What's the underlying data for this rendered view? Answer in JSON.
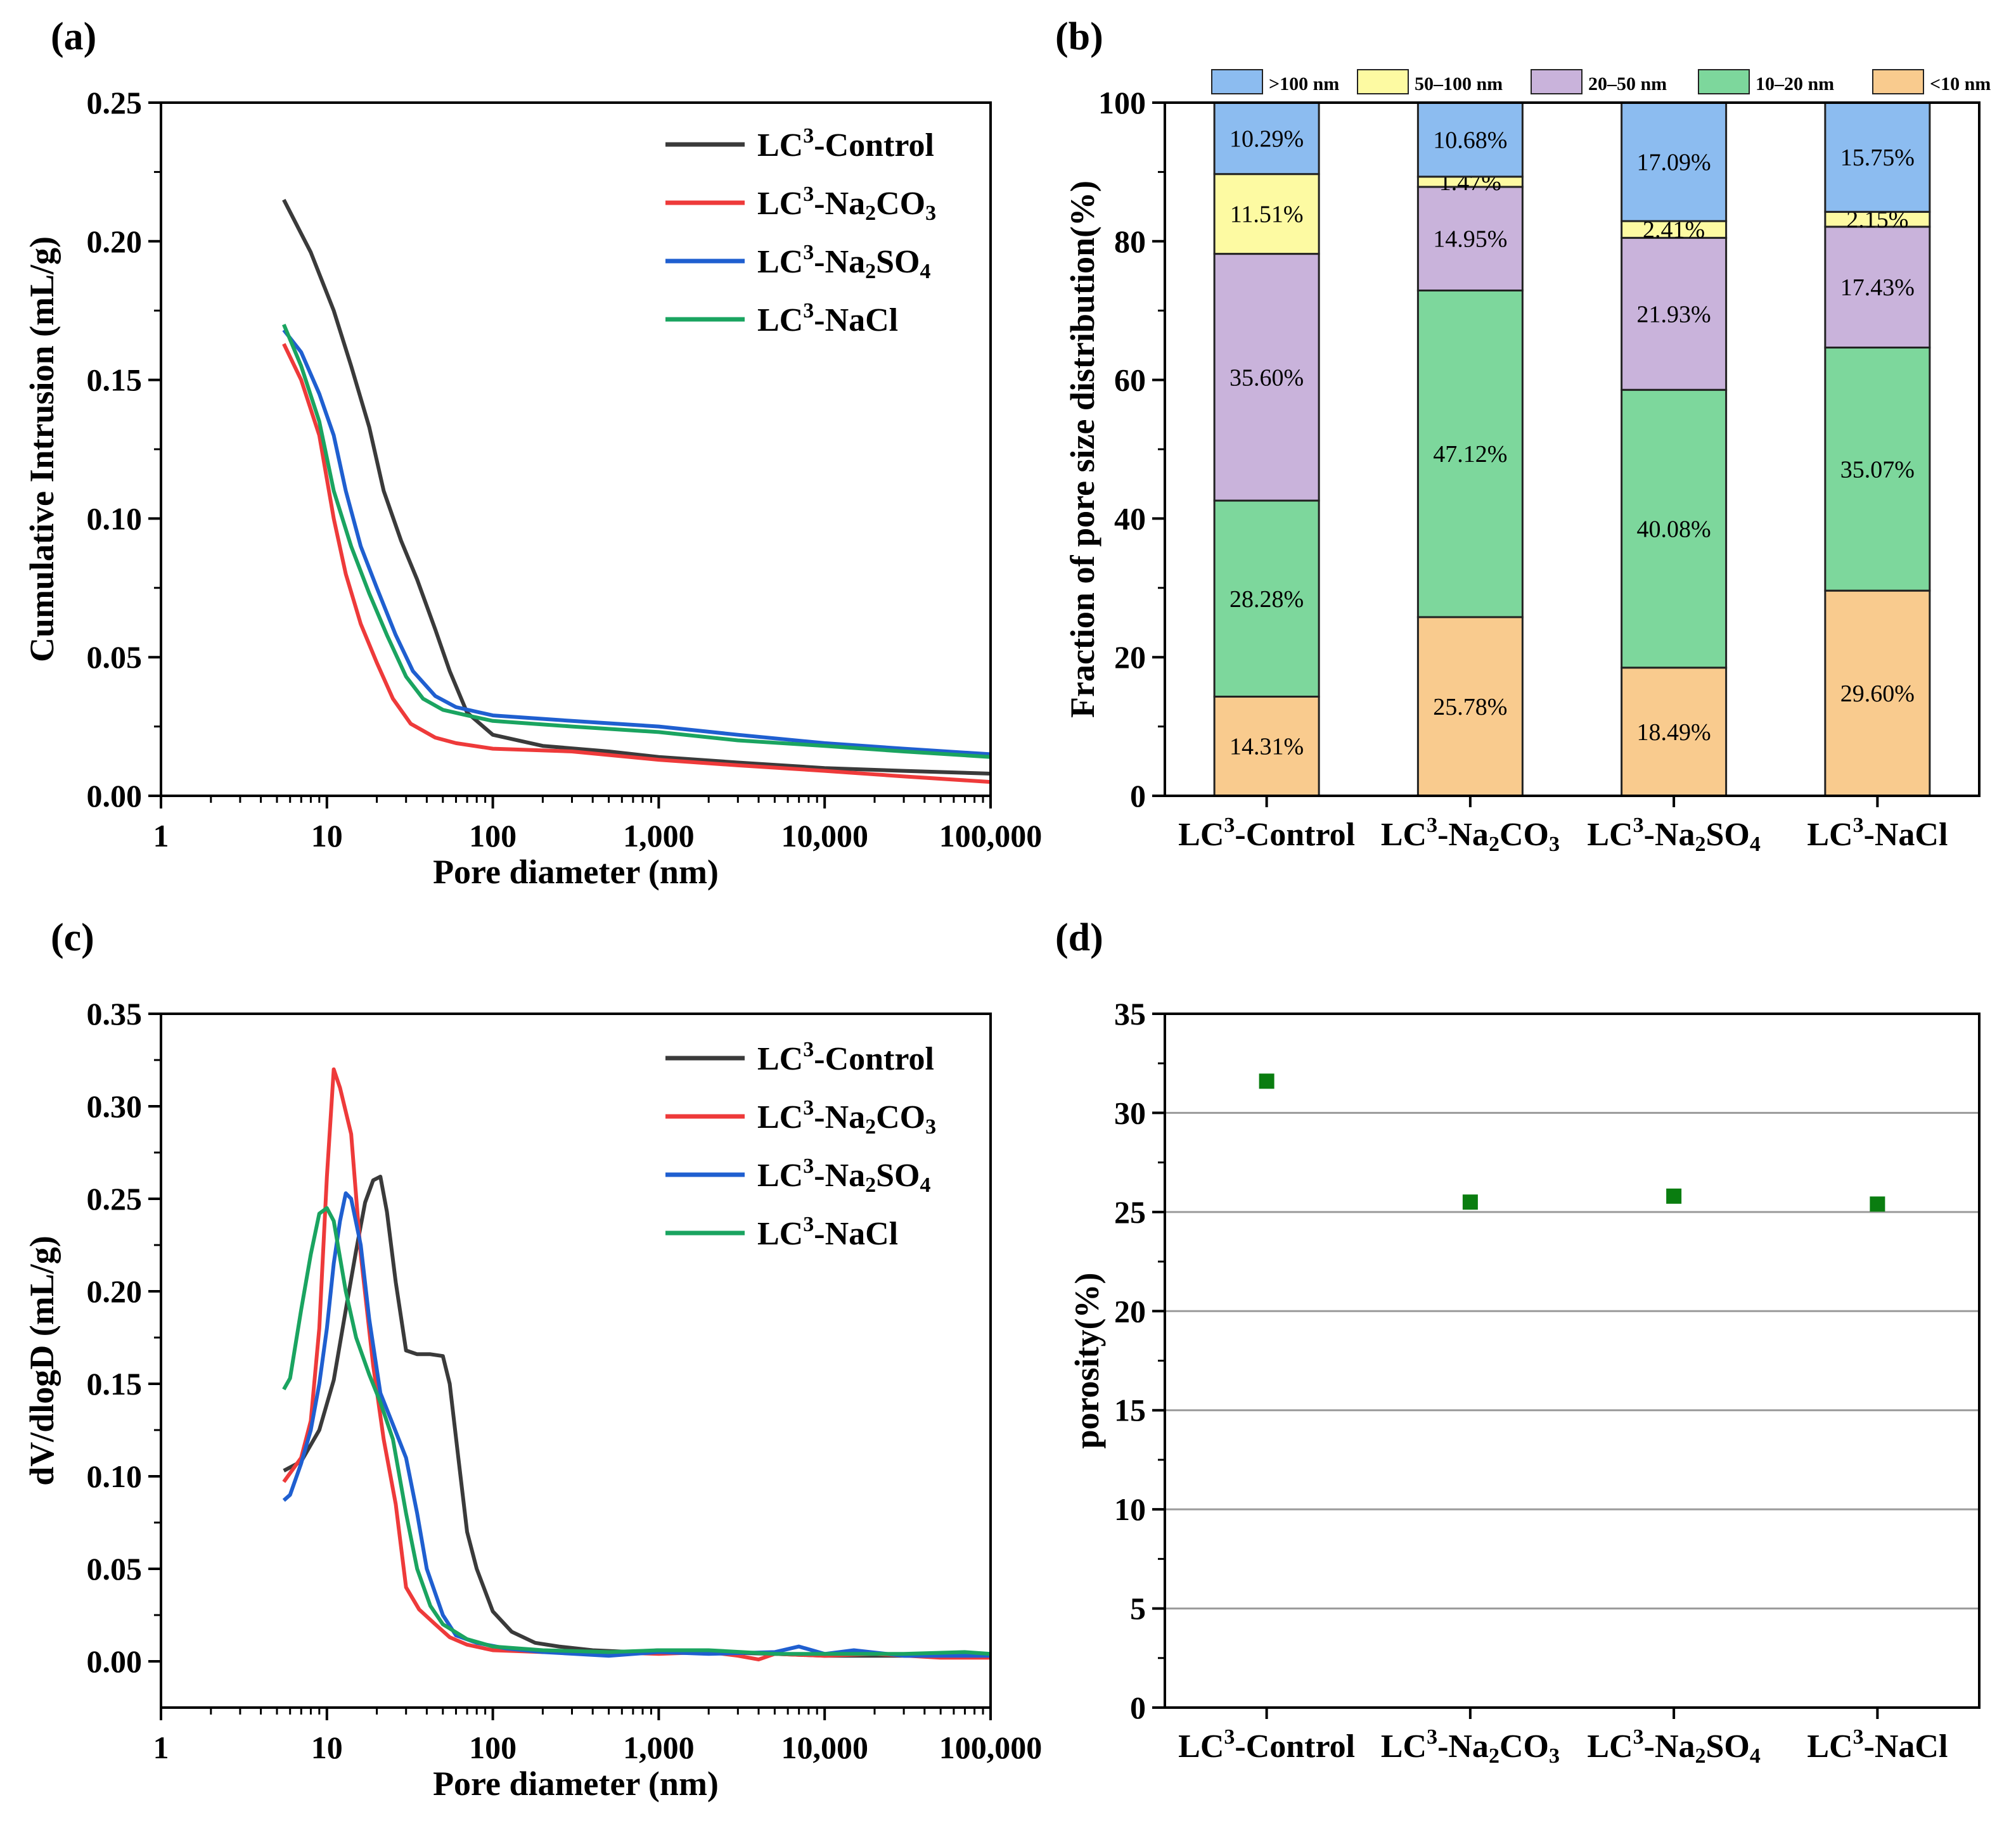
{
  "chart_data": [
    {
      "panel": "(a)",
      "type": "line",
      "xscale": "log",
      "xlabel": "Pore diameter (nm)",
      "ylabel": "Cumulative Intrusion  (mL/g)",
      "xlim": [
        1,
        100000
      ],
      "ylim": [
        0,
        0.25
      ],
      "xticks": [
        {
          "v": 1,
          "label": "1"
        },
        {
          "v": 10,
          "label": "10"
        },
        {
          "v": 100,
          "label": "100"
        },
        {
          "v": 1000,
          "label": "1,000"
        },
        {
          "v": 10000,
          "label": "10,000"
        },
        {
          "v": 100000,
          "label": "100,000"
        }
      ],
      "yticks": [
        {
          "v": 0,
          "label": "0.00"
        },
        {
          "v": 0.05,
          "label": "0.05"
        },
        {
          "v": 0.1,
          "label": "0.10"
        },
        {
          "v": 0.15,
          "label": "0.15"
        },
        {
          "v": 0.2,
          "label": "0.20"
        },
        {
          "v": 0.25,
          "label": "0.25"
        }
      ],
      "legend_position": "top-right",
      "series": [
        {
          "name": "LC3-Control",
          "color": "#3a3a3a",
          "points": [
            [
              5.5,
              0.215
            ],
            [
              8,
              0.196
            ],
            [
              11,
              0.175
            ],
            [
              14,
              0.155
            ],
            [
              18,
              0.133
            ],
            [
              22,
              0.11
            ],
            [
              28,
              0.092
            ],
            [
              35,
              0.078
            ],
            [
              45,
              0.06
            ],
            [
              55,
              0.045
            ],
            [
              70,
              0.03
            ],
            [
              100,
              0.022
            ],
            [
              200,
              0.018
            ],
            [
              500,
              0.016
            ],
            [
              1000,
              0.014
            ],
            [
              3000,
              0.012
            ],
            [
              10000,
              0.01
            ],
            [
              30000,
              0.009
            ],
            [
              100000,
              0.008
            ]
          ]
        },
        {
          "name": "LC3-Na2CO3",
          "color": "#ee3a3a",
          "points": [
            [
              5.5,
              0.163
            ],
            [
              7,
              0.15
            ],
            [
              9,
              0.13
            ],
            [
              11,
              0.1
            ],
            [
              13,
              0.08
            ],
            [
              16,
              0.062
            ],
            [
              20,
              0.048
            ],
            [
              25,
              0.035
            ],
            [
              32,
              0.026
            ],
            [
              45,
              0.021
            ],
            [
              60,
              0.019
            ],
            [
              100,
              0.017
            ],
            [
              300,
              0.016
            ],
            [
              1000,
              0.013
            ],
            [
              3000,
              0.011
            ],
            [
              10000,
              0.009
            ],
            [
              30000,
              0.007
            ],
            [
              100000,
              0.005
            ]
          ]
        },
        {
          "name": "LC3-Na2SO4",
          "color": "#1f5fd0",
          "points": [
            [
              5.5,
              0.168
            ],
            [
              7,
              0.16
            ],
            [
              9,
              0.145
            ],
            [
              11,
              0.13
            ],
            [
              13,
              0.11
            ],
            [
              16,
              0.09
            ],
            [
              20,
              0.075
            ],
            [
              26,
              0.058
            ],
            [
              33,
              0.045
            ],
            [
              45,
              0.036
            ],
            [
              60,
              0.032
            ],
            [
              100,
              0.029
            ],
            [
              300,
              0.027
            ],
            [
              1000,
              0.025
            ],
            [
              3000,
              0.022
            ],
            [
              10000,
              0.019
            ],
            [
              30000,
              0.017
            ],
            [
              100000,
              0.015
            ]
          ]
        },
        {
          "name": "LC3-NaCl",
          "color": "#1aa460",
          "points": [
            [
              5.5,
              0.17
            ],
            [
              7,
              0.155
            ],
            [
              9,
              0.135
            ],
            [
              11,
              0.11
            ],
            [
              14,
              0.09
            ],
            [
              18,
              0.073
            ],
            [
              23,
              0.058
            ],
            [
              30,
              0.043
            ],
            [
              38,
              0.035
            ],
            [
              50,
              0.031
            ],
            [
              70,
              0.029
            ],
            [
              100,
              0.027
            ],
            [
              300,
              0.025
            ],
            [
              1000,
              0.023
            ],
            [
              3000,
              0.02
            ],
            [
              10000,
              0.018
            ],
            [
              30000,
              0.016
            ],
            [
              100000,
              0.014
            ]
          ]
        }
      ]
    },
    {
      "panel": "(b)",
      "type": "bar",
      "stacked": true,
      "ylabel": "Fraction of pore size distribution(%)",
      "ylim": [
        0,
        100
      ],
      "yticks": [
        {
          "v": 0,
          "label": "0"
        },
        {
          "v": 20,
          "label": "20"
        },
        {
          "v": 40,
          "label": "40"
        },
        {
          "v": 60,
          "label": "60"
        },
        {
          "v": 80,
          "label": "80"
        },
        {
          "v": 100,
          "label": "100"
        }
      ],
      "categories": [
        "LC3-Control",
        "LC3-Na2CO3",
        "LC3-Na2SO4",
        "LC3-NaCl"
      ],
      "legend_position": "top",
      "legend_order": [
        ">100 nm",
        "50–100 nm",
        "20–50 nm",
        "10–20 nm",
        "<10 nm"
      ],
      "series": [
        {
          "name": "<10 nm",
          "color": "#f9cb8e",
          "values": [
            14.31,
            25.78,
            18.49,
            29.6
          ],
          "labels": [
            "14.31%",
            "25.78%",
            "18.49%",
            "29.60%"
          ]
        },
        {
          "name": "10–20 nm",
          "color": "#7dd79c",
          "values": [
            28.28,
            47.12,
            40.08,
            35.07
          ],
          "labels": [
            "28.28%",
            "47.12%",
            "40.08%",
            "35.07%"
          ]
        },
        {
          "name": "20–50 nm",
          "color": "#c9b3db",
          "values": [
            35.6,
            14.95,
            21.93,
            17.43
          ],
          "labels": [
            "35.60%",
            "14.95%",
            "21.93%",
            "17.43%"
          ]
        },
        {
          "name": "50–100 nm",
          "color": "#fdfaa2",
          "values": [
            11.51,
            1.47,
            2.41,
            2.15
          ],
          "labels": [
            "11.51%",
            "1.47%",
            "2.41%",
            "2.15%"
          ]
        },
        {
          "name": ">100 nm",
          "color": "#8cbcf0",
          "values": [
            10.29,
            10.68,
            17.09,
            15.75
          ],
          "labels": [
            "10.29%",
            "10.68%",
            "17.09%",
            "15.75%"
          ]
        }
      ]
    },
    {
      "panel": "(c)",
      "type": "line",
      "xscale": "log",
      "xlabel": "Pore diameter (nm)",
      "ylabel": "dV/dlogD (mL/g)",
      "xlim": [
        1,
        100000
      ],
      "ylim": [
        -0.025,
        0.35
      ],
      "xticks": [
        {
          "v": 1,
          "label": "1"
        },
        {
          "v": 10,
          "label": "10"
        },
        {
          "v": 100,
          "label": "100"
        },
        {
          "v": 1000,
          "label": "1,000"
        },
        {
          "v": 10000,
          "label": "10,000"
        },
        {
          "v": 100000,
          "label": "100,000"
        }
      ],
      "yticks": [
        {
          "v": 0,
          "label": "0.00"
        },
        {
          "v": 0.05,
          "label": "0.05"
        },
        {
          "v": 0.1,
          "label": "0.10"
        },
        {
          "v": 0.15,
          "label": "0.15"
        },
        {
          "v": 0.2,
          "label": "0.20"
        },
        {
          "v": 0.25,
          "label": "0.25"
        },
        {
          "v": 0.3,
          "label": "0.30"
        },
        {
          "v": 0.35,
          "label": "0.35"
        }
      ],
      "legend_position": "top-right",
      "series": [
        {
          "name": "LC3-Control",
          "color": "#3a3a3a",
          "points": [
            [
              5.5,
              0.103
            ],
            [
              7,
              0.108
            ],
            [
              9,
              0.125
            ],
            [
              11,
              0.152
            ],
            [
              13,
              0.19
            ],
            [
              15,
              0.222
            ],
            [
              17,
              0.248
            ],
            [
              19,
              0.26
            ],
            [
              21,
              0.262
            ],
            [
              23,
              0.243
            ],
            [
              26,
              0.205
            ],
            [
              30,
              0.168
            ],
            [
              35,
              0.166
            ],
            [
              42,
              0.166
            ],
            [
              50,
              0.165
            ],
            [
              55,
              0.15
            ],
            [
              62,
              0.11
            ],
            [
              70,
              0.07
            ],
            [
              80,
              0.05
            ],
            [
              100,
              0.027
            ],
            [
              130,
              0.016
            ],
            [
              180,
              0.01
            ],
            [
              250,
              0.008
            ],
            [
              400,
              0.006
            ],
            [
              700,
              0.005
            ],
            [
              1000,
              0.006
            ],
            [
              2000,
              0.005
            ],
            [
              5000,
              0.004
            ],
            [
              10000,
              0.003
            ],
            [
              30000,
              0.003
            ],
            [
              100000,
              0.003
            ]
          ]
        },
        {
          "name": "LC3-Na2CO3",
          "color": "#ee3a3a",
          "points": [
            [
              5.5,
              0.097
            ],
            [
              7,
              0.11
            ],
            [
              8,
              0.13
            ],
            [
              9,
              0.18
            ],
            [
              10,
              0.262
            ],
            [
              11,
              0.32
            ],
            [
              12,
              0.31
            ],
            [
              14,
              0.285
            ],
            [
              16,
              0.22
            ],
            [
              19,
              0.16
            ],
            [
              22,
              0.12
            ],
            [
              26,
              0.085
            ],
            [
              30,
              0.04
            ],
            [
              36,
              0.028
            ],
            [
              45,
              0.02
            ],
            [
              55,
              0.013
            ],
            [
              70,
              0.009
            ],
            [
              100,
              0.006
            ],
            [
              200,
              0.005
            ],
            [
              500,
              0.005
            ],
            [
              1000,
              0.004
            ],
            [
              2000,
              0.005
            ],
            [
              3000,
              0.003
            ],
            [
              4000,
              0.001
            ],
            [
              5000,
              0.004
            ],
            [
              10000,
              0.003
            ],
            [
              20000,
              0.004
            ],
            [
              50000,
              0.002
            ],
            [
              100000,
              0.002
            ]
          ]
        },
        {
          "name": "LC3-Na2SO4",
          "color": "#1f5fd0",
          "points": [
            [
              5.5,
              0.087
            ],
            [
              6,
              0.09
            ],
            [
              7,
              0.107
            ],
            [
              8,
              0.125
            ],
            [
              9,
              0.15
            ],
            [
              10,
              0.18
            ],
            [
              11,
              0.215
            ],
            [
              12,
              0.238
            ],
            [
              13,
              0.253
            ],
            [
              14,
              0.25
            ],
            [
              16,
              0.225
            ],
            [
              18,
              0.185
            ],
            [
              21,
              0.145
            ],
            [
              25,
              0.128
            ],
            [
              30,
              0.11
            ],
            [
              35,
              0.08
            ],
            [
              40,
              0.05
            ],
            [
              50,
              0.025
            ],
            [
              60,
              0.014
            ],
            [
              80,
              0.01
            ],
            [
              120,
              0.007
            ],
            [
              200,
              0.005
            ],
            [
              500,
              0.003
            ],
            [
              1000,
              0.005
            ],
            [
              2000,
              0.004
            ],
            [
              5000,
              0.005
            ],
            [
              7000,
              0.008
            ],
            [
              10000,
              0.004
            ],
            [
              15000,
              0.006
            ],
            [
              30000,
              0.003
            ],
            [
              100000,
              0.003
            ]
          ]
        },
        {
          "name": "LC3-NaCl",
          "color": "#1aa460",
          "points": [
            [
              5.5,
              0.147
            ],
            [
              6,
              0.153
            ],
            [
              7,
              0.19
            ],
            [
              8,
              0.22
            ],
            [
              9,
              0.242
            ],
            [
              10,
              0.245
            ],
            [
              11,
              0.238
            ],
            [
              13,
              0.2
            ],
            [
              15,
              0.175
            ],
            [
              18,
              0.155
            ],
            [
              21,
              0.14
            ],
            [
              25,
              0.12
            ],
            [
              30,
              0.08
            ],
            [
              35,
              0.05
            ],
            [
              42,
              0.03
            ],
            [
              50,
              0.02
            ],
            [
              70,
              0.012
            ],
            [
              100,
              0.008
            ],
            [
              200,
              0.006
            ],
            [
              500,
              0.005
            ],
            [
              1000,
              0.006
            ],
            [
              2000,
              0.006
            ],
            [
              5000,
              0.004
            ],
            [
              10000,
              0.004
            ],
            [
              30000,
              0.004
            ],
            [
              70000,
              0.005
            ],
            [
              100000,
              0.004
            ]
          ]
        }
      ]
    },
    {
      "panel": "(d)",
      "type": "scatter",
      "ylabel": "porosity(%)",
      "ylim": [
        0,
        35
      ],
      "grid": true,
      "yticks": [
        {
          "v": 0,
          "label": "0"
        },
        {
          "v": 5,
          "label": "5"
        },
        {
          "v": 10,
          "label": "10"
        },
        {
          "v": 15,
          "label": "15"
        },
        {
          "v": 20,
          "label": "20"
        },
        {
          "v": 25,
          "label": "25"
        },
        {
          "v": 30,
          "label": "30"
        },
        {
          "v": 35,
          "label": "35"
        }
      ],
      "categories": [
        "LC3-Control",
        "LC3-Na2CO3",
        "LC3-Na2SO4",
        "LC3-NaCl"
      ],
      "values": [
        31.6,
        25.5,
        25.8,
        25.4
      ],
      "marker_color": "#0a7d10"
    }
  ]
}
